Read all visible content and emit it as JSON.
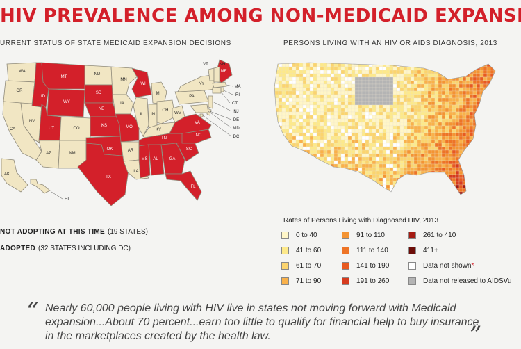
{
  "title": "HIV PREVALENCE AMONG NON-MEDICAID EXPANSION STATES",
  "left_panel": {
    "subtitle": "URRENT STATUS OF STATE MEDICAID EXPANSION DECISIONS",
    "legend": {
      "not_adopting_strong": "NOT ADOPTING AT THIS TIME",
      "not_adopting_rest": "(19 STATES)",
      "adopted_strong": "ADOPTED",
      "adopted_rest": "(32 STATES INCLUDING DC)"
    },
    "colors": {
      "not_adopting": "#d3202a",
      "adopted": "#f1e6c3",
      "border": "#8f8a7a"
    },
    "state_labels": [
      "WA",
      "OR",
      "CA",
      "NV",
      "ID",
      "MT",
      "WY",
      "UT",
      "AZ",
      "CO",
      "NM",
      "ND",
      "SD",
      "NE",
      "KS",
      "OK",
      "TX",
      "MN",
      "IA",
      "MO",
      "AR",
      "LA",
      "WI",
      "IL",
      "MI",
      "IN",
      "OH",
      "KY",
      "TN",
      "MS",
      "AL",
      "GA",
      "FL",
      "SC",
      "NC",
      "VA",
      "WV",
      "PA",
      "NY",
      "ME",
      "VT",
      "NH",
      "MA",
      "RI",
      "CT",
      "NJ",
      "DE",
      "MD",
      "DC",
      "AK",
      "HI"
    ]
  },
  "right_panel": {
    "subtitle": "PERSONS LIVING WITH AN HIV OR AIDS DIAGNOSIS, 2013",
    "legend_title": "Rates of Persons Living with Diagnosed HIV, 2013",
    "legend_items": [
      {
        "label": "0 to 40",
        "color": "#fff6c8"
      },
      {
        "label": "41 to 60",
        "color": "#fde98a"
      },
      {
        "label": "61 to 70",
        "color": "#fbd46e"
      },
      {
        "label": "71 to 90",
        "color": "#f9b14a"
      },
      {
        "label": "91 to 110",
        "color": "#f49433"
      },
      {
        "label": "111 to 140",
        "color": "#ee7426"
      },
      {
        "label": "141 to 190",
        "color": "#e85a20"
      },
      {
        "label": "191 to 260",
        "color": "#d63b1e"
      },
      {
        "label": "261 to 410",
        "color": "#a51b12"
      },
      {
        "label": "411+",
        "color": "#6d0d08"
      },
      {
        "label": "Data not shown",
        "color": "#ffffff",
        "mark": "*"
      },
      {
        "label": "Data not released to AIDSVu",
        "color": "#b4b4b4"
      }
    ]
  },
  "quote": {
    "text": "Nearly 60,000 people living with HIV live in states not moving forward with Medicaid expansion...About 70 percent...earn too little to qualify for financial help to buy insurance in the marketplaces created by the health law.",
    "open_mark": "“",
    "close_mark": "”"
  }
}
